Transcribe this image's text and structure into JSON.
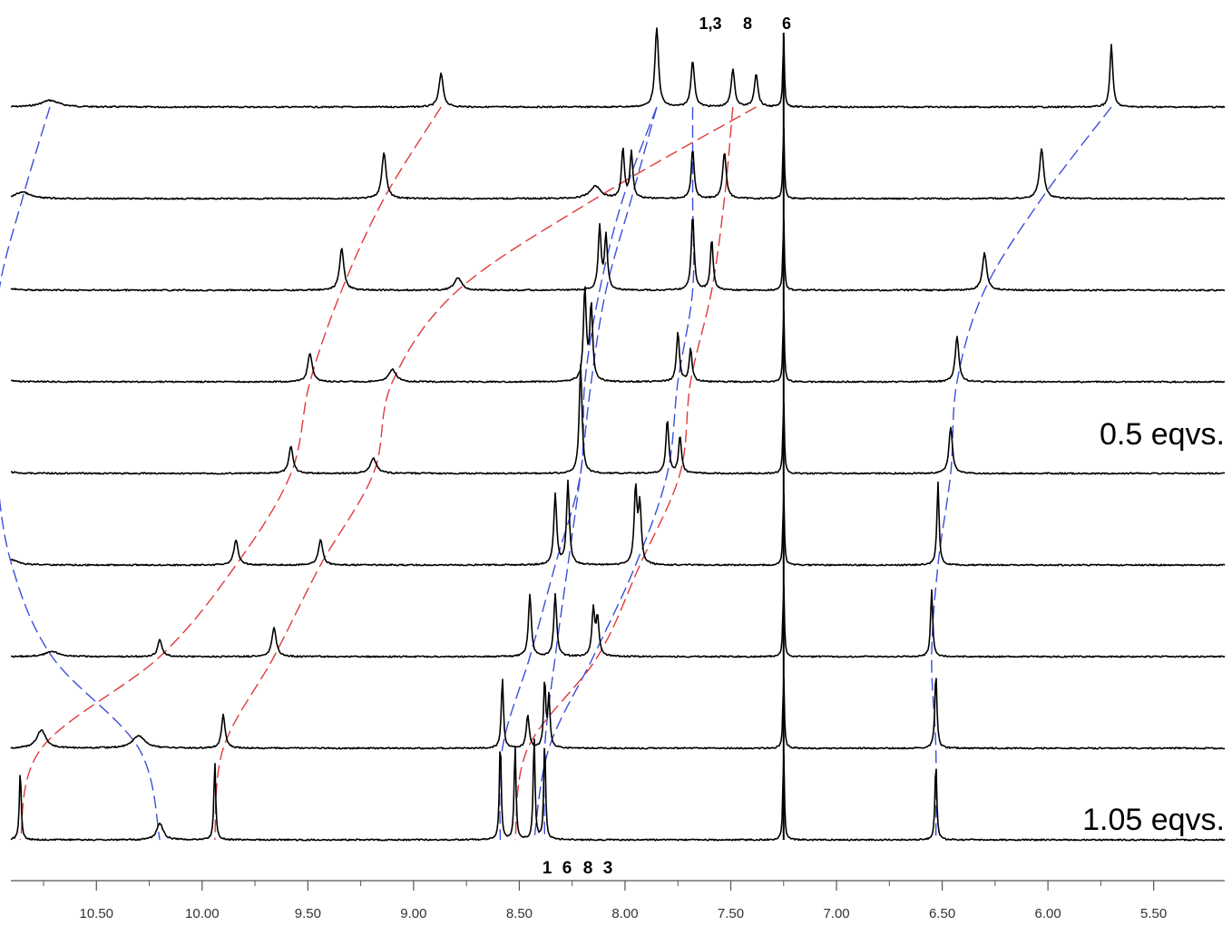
{
  "chart_data": {
    "type": "line",
    "xlabel": "",
    "ylabel": "",
    "x_direction": "reversed",
    "xlim": [
      5.45,
      11.0
    ],
    "x_ticks": [
      10.5,
      10.0,
      9.5,
      9.0,
      8.5,
      8.0,
      7.5,
      7.0,
      6.5,
      6.0,
      5.5
    ],
    "x_tick_labels": [
      "10.50",
      "10.00",
      "9.50",
      "9.00",
      "8.50",
      "8.00",
      "7.50",
      "7.00",
      "6.50",
      "6.00",
      "5.50"
    ],
    "reference_line_ppm": 7.25,
    "grid": false,
    "legend": "none",
    "annotations": {
      "top_labels": [
        "1,3",
        "8",
        "6"
      ],
      "bottom_labels": [
        "1",
        "6",
        "8",
        "3"
      ],
      "equiv_labels": [
        "0.5 eqvs.",
        "1.05 eqvs."
      ]
    },
    "series": [
      {
        "peaks": [
          {
            "x": 10.72,
            "h": 0.08,
            "w": 0.05
          },
          {
            "x": 8.87,
            "h": 0.4,
            "w": 0.012
          },
          {
            "x": 7.85,
            "h": 0.95,
            "w": 0.01
          },
          {
            "x": 7.68,
            "h": 0.55,
            "w": 0.01
          },
          {
            "x": 7.49,
            "h": 0.45,
            "w": 0.01
          },
          {
            "x": 7.38,
            "h": 0.4,
            "w": 0.01
          },
          {
            "x": 7.25,
            "h": 0.9,
            "w": 0.004
          },
          {
            "x": 5.7,
            "h": 0.75,
            "w": 0.008
          }
        ]
      },
      {
        "peaks": [
          {
            "x": 10.85,
            "h": 0.08,
            "w": 0.04
          },
          {
            "x": 9.14,
            "h": 0.55,
            "w": 0.012
          },
          {
            "x": 8.14,
            "h": 0.15,
            "w": 0.03
          },
          {
            "x": 8.01,
            "h": 0.6,
            "w": 0.008
          },
          {
            "x": 7.97,
            "h": 0.55,
            "w": 0.008
          },
          {
            "x": 7.68,
            "h": 0.6,
            "w": 0.008
          },
          {
            "x": 7.53,
            "h": 0.55,
            "w": 0.01
          },
          {
            "x": 7.25,
            "h": 0.9,
            "w": 0.004
          },
          {
            "x": 6.03,
            "h": 0.6,
            "w": 0.012
          }
        ]
      },
      {
        "peaks": [
          {
            "x": 10.96,
            "h": 0.06,
            "w": 0.04
          },
          {
            "x": 9.34,
            "h": 0.5,
            "w": 0.012
          },
          {
            "x": 8.79,
            "h": 0.15,
            "w": 0.02
          },
          {
            "x": 8.12,
            "h": 0.75,
            "w": 0.008
          },
          {
            "x": 8.09,
            "h": 0.65,
            "w": 0.008
          },
          {
            "x": 7.68,
            "h": 0.9,
            "w": 0.008
          },
          {
            "x": 7.59,
            "h": 0.6,
            "w": 0.008
          },
          {
            "x": 7.25,
            "h": 0.9,
            "w": 0.004
          },
          {
            "x": 6.3,
            "h": 0.45,
            "w": 0.012
          }
        ]
      },
      {
        "peaks": [
          {
            "x": 10.98,
            "h": 0.06,
            "w": 0.04
          },
          {
            "x": 9.49,
            "h": 0.35,
            "w": 0.012
          },
          {
            "x": 9.1,
            "h": 0.15,
            "w": 0.02
          },
          {
            "x": 8.19,
            "h": 1.1,
            "w": 0.008
          },
          {
            "x": 8.16,
            "h": 0.9,
            "w": 0.008
          },
          {
            "x": 7.75,
            "h": 0.6,
            "w": 0.008
          },
          {
            "x": 7.69,
            "h": 0.4,
            "w": 0.008
          },
          {
            "x": 7.25,
            "h": 0.9,
            "w": 0.004
          },
          {
            "x": 6.43,
            "h": 0.55,
            "w": 0.01
          }
        ]
      },
      {
        "peaks": [
          {
            "x": 10.97,
            "h": 0.06,
            "w": 0.04
          },
          {
            "x": 9.58,
            "h": 0.32,
            "w": 0.012
          },
          {
            "x": 9.19,
            "h": 0.18,
            "w": 0.018
          },
          {
            "x": 8.21,
            "h": 1.3,
            "w": 0.008
          },
          {
            "x": 7.8,
            "h": 0.65,
            "w": 0.008
          },
          {
            "x": 7.74,
            "h": 0.45,
            "w": 0.008
          },
          {
            "x": 7.25,
            "h": 0.9,
            "w": 0.004
          },
          {
            "x": 6.46,
            "h": 0.55,
            "w": 0.01
          }
        ]
      },
      {
        "peaks": [
          {
            "x": 10.9,
            "h": 0.06,
            "w": 0.04
          },
          {
            "x": 9.84,
            "h": 0.3,
            "w": 0.012
          },
          {
            "x": 9.44,
            "h": 0.3,
            "w": 0.012
          },
          {
            "x": 8.33,
            "h": 0.85,
            "w": 0.008
          },
          {
            "x": 8.27,
            "h": 1.0,
            "w": 0.008
          },
          {
            "x": 7.95,
            "h": 0.9,
            "w": 0.008
          },
          {
            "x": 7.93,
            "h": 0.7,
            "w": 0.008
          },
          {
            "x": 7.25,
            "h": 0.9,
            "w": 0.004
          },
          {
            "x": 6.52,
            "h": 1.0,
            "w": 0.006
          }
        ]
      },
      {
        "peaks": [
          {
            "x": 10.71,
            "h": 0.06,
            "w": 0.04
          },
          {
            "x": 10.2,
            "h": 0.2,
            "w": 0.012
          },
          {
            "x": 9.66,
            "h": 0.35,
            "w": 0.012
          },
          {
            "x": 8.45,
            "h": 0.75,
            "w": 0.008
          },
          {
            "x": 8.33,
            "h": 0.75,
            "w": 0.008
          },
          {
            "x": 8.15,
            "h": 0.55,
            "w": 0.008
          },
          {
            "x": 8.13,
            "h": 0.45,
            "w": 0.008
          },
          {
            "x": 7.25,
            "h": 0.9,
            "w": 0.004
          },
          {
            "x": 6.55,
            "h": 0.8,
            "w": 0.006
          }
        ]
      },
      {
        "peaks": [
          {
            "x": 10.76,
            "h": 0.22,
            "w": 0.025
          },
          {
            "x": 10.3,
            "h": 0.15,
            "w": 0.035
          },
          {
            "x": 9.9,
            "h": 0.4,
            "w": 0.01
          },
          {
            "x": 8.58,
            "h": 0.85,
            "w": 0.006
          },
          {
            "x": 8.46,
            "h": 0.4,
            "w": 0.008
          },
          {
            "x": 8.38,
            "h": 0.8,
            "w": 0.006
          },
          {
            "x": 8.36,
            "h": 0.6,
            "w": 0.006
          },
          {
            "x": 7.25,
            "h": 0.9,
            "w": 0.004
          },
          {
            "x": 6.53,
            "h": 0.9,
            "w": 0.006
          }
        ]
      },
      {
        "peaks": [
          {
            "x": 10.86,
            "h": 0.85,
            "w": 0.005
          },
          {
            "x": 10.2,
            "h": 0.2,
            "w": 0.018
          },
          {
            "x": 9.94,
            "h": 0.95,
            "w": 0.005
          },
          {
            "x": 8.59,
            "h": 1.2,
            "w": 0.005
          },
          {
            "x": 8.52,
            "h": 1.15,
            "w": 0.005
          },
          {
            "x": 8.43,
            "h": 1.25,
            "w": 0.005
          },
          {
            "x": 8.38,
            "h": 1.2,
            "w": 0.005
          },
          {
            "x": 7.25,
            "h": 1.1,
            "w": 0.004
          },
          {
            "x": 6.53,
            "h": 0.95,
            "w": 0.005
          }
        ]
      }
    ],
    "tracking_lines": [
      {
        "color": "#3b4fd8",
        "points": [
          [
            10.72,
            0
          ],
          [
            10.85,
            1
          ],
          [
            10.96,
            2
          ],
          [
            10.98,
            3
          ],
          [
            10.97,
            4
          ],
          [
            10.9,
            5
          ],
          [
            10.71,
            6
          ],
          [
            10.3,
            7
          ],
          [
            10.2,
            8
          ]
        ]
      },
      {
        "color": "#e03a3a",
        "points": [
          [
            8.87,
            0
          ],
          [
            9.14,
            1
          ],
          [
            9.34,
            2
          ],
          [
            9.49,
            3
          ],
          [
            9.58,
            4
          ],
          [
            9.84,
            5
          ],
          [
            10.2,
            6
          ],
          [
            10.76,
            7
          ],
          [
            10.86,
            8
          ]
        ]
      },
      {
        "color": "#e03a3a",
        "points": [
          [
            7.38,
            0
          ],
          [
            8.14,
            1
          ],
          [
            8.79,
            2
          ],
          [
            9.1,
            3
          ],
          [
            9.19,
            4
          ],
          [
            9.44,
            5
          ],
          [
            9.66,
            6
          ],
          [
            9.9,
            7
          ],
          [
            9.94,
            8
          ]
        ]
      },
      {
        "color": "#3b4fd8",
        "points": [
          [
            7.85,
            0
          ],
          [
            7.97,
            1
          ],
          [
            8.09,
            2
          ],
          [
            8.16,
            3
          ],
          [
            8.21,
            4
          ],
          [
            8.27,
            5
          ],
          [
            8.33,
            6
          ],
          [
            8.38,
            7
          ],
          [
            8.38,
            8
          ]
        ]
      },
      {
        "color": "#3b4fd8",
        "points": [
          [
            7.85,
            0
          ],
          [
            8.01,
            1
          ],
          [
            8.12,
            2
          ],
          [
            8.19,
            3
          ],
          [
            8.21,
            4
          ],
          [
            8.33,
            5
          ],
          [
            8.45,
            6
          ],
          [
            8.58,
            7
          ],
          [
            8.59,
            8
          ]
        ]
      },
      {
        "color": "#3b4fd8",
        "points": [
          [
            7.68,
            0
          ],
          [
            7.68,
            1
          ],
          [
            7.68,
            2
          ],
          [
            7.75,
            3
          ],
          [
            7.8,
            4
          ],
          [
            7.95,
            5
          ],
          [
            8.15,
            6
          ],
          [
            8.36,
            7
          ],
          [
            8.43,
            8
          ]
        ]
      },
      {
        "color": "#e03a3a",
        "points": [
          [
            7.49,
            0
          ],
          [
            7.53,
            1
          ],
          [
            7.59,
            2
          ],
          [
            7.69,
            3
          ],
          [
            7.74,
            4
          ],
          [
            7.93,
            5
          ],
          [
            8.13,
            6
          ],
          [
            8.46,
            7
          ],
          [
            8.52,
            8
          ]
        ]
      },
      {
        "color": "#3b4fd8",
        "points": [
          [
            5.7,
            0
          ],
          [
            6.03,
            1
          ],
          [
            6.3,
            2
          ],
          [
            6.43,
            3
          ],
          [
            6.46,
            4
          ],
          [
            6.52,
            5
          ],
          [
            6.55,
            6
          ],
          [
            6.53,
            7
          ],
          [
            6.53,
            8
          ]
        ]
      }
    ]
  }
}
